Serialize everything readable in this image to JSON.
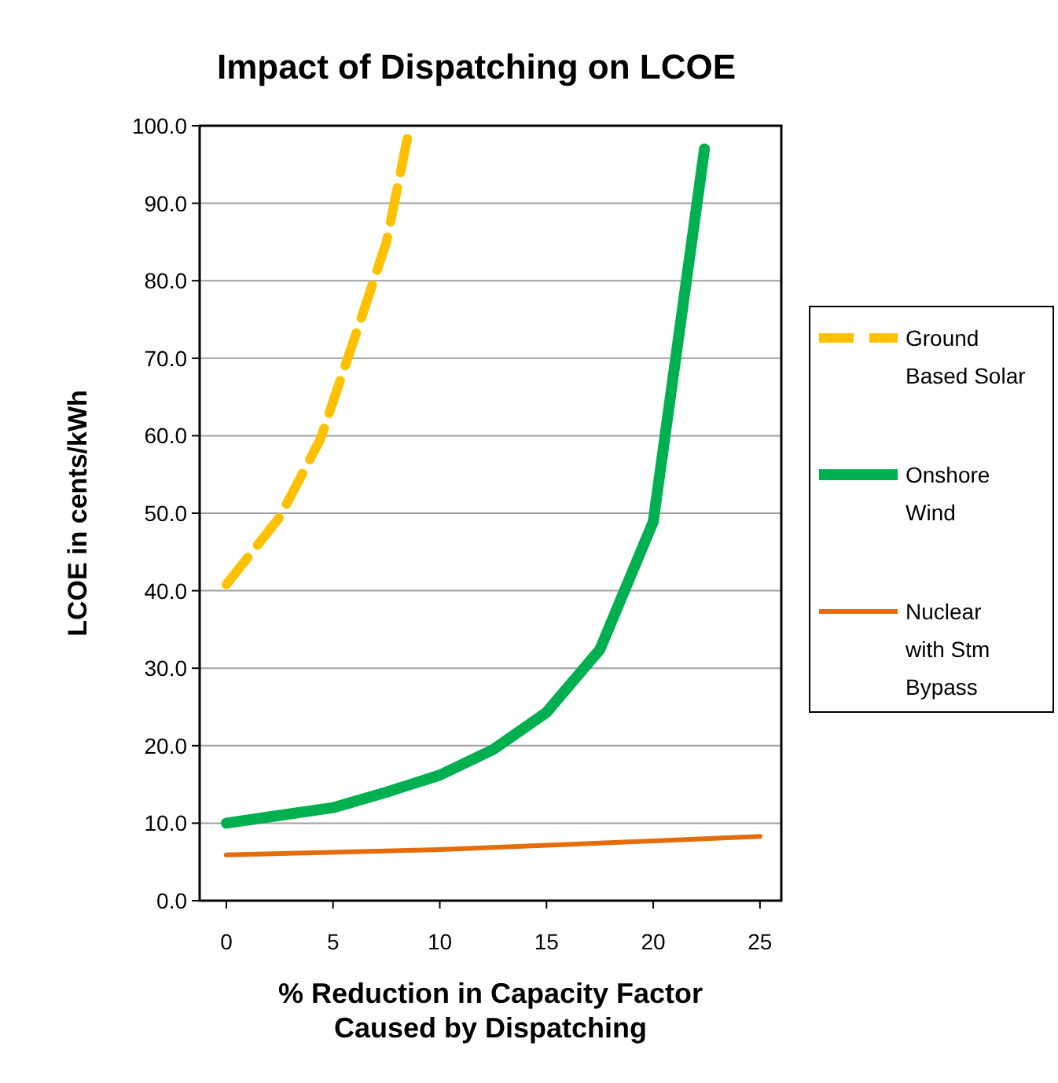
{
  "chart_data": {
    "type": "line",
    "title": "Impact of Dispatching on LCOE",
    "xlabel": "% Reduction in Capacity Factor Caused by Dispatching",
    "ylabel": "LCOE in cents/kWh",
    "xlim": [
      -1.25,
      26
    ],
    "xticks": [
      0,
      5,
      10,
      15,
      20,
      25
    ],
    "ylim": [
      0,
      100
    ],
    "yticks": [
      {
        "value": 0,
        "label": "0.0"
      },
      {
        "value": 10,
        "label": "10.0"
      },
      {
        "value": 20,
        "label": "20.0"
      },
      {
        "value": 30,
        "label": "30.0"
      },
      {
        "value": 40,
        "label": "40.0"
      },
      {
        "value": 50,
        "label": "50.0"
      },
      {
        "value": 60,
        "label": "60.0"
      },
      {
        "value": 70,
        "label": "70.0"
      },
      {
        "value": 80,
        "label": "80.0"
      },
      {
        "value": 90,
        "label": "90.0"
      },
      {
        "value": 100,
        "label": "100.0"
      }
    ],
    "grid": "y",
    "legend": "right",
    "marker": "none",
    "series": [
      {
        "name": "Ground Based Solar",
        "color": "#ffc000",
        "line_style": "dashed",
        "x": [
          0,
          2.5,
          4.4,
          6.3,
          7.5,
          8.6
        ],
        "values": [
          40.8,
          49.5,
          59.5,
          75,
          85,
          100
        ]
      },
      {
        "name": "Onshore Wind",
        "color": "#00b050",
        "line_style": "solid",
        "x": [
          0,
          2.5,
          5,
          7.5,
          10,
          12.5,
          15,
          17.5,
          20,
          22.4
        ],
        "values": [
          10,
          11,
          12,
          14,
          16.2,
          19.5,
          24.3,
          32.4,
          48.9,
          97
        ]
      },
      {
        "name": "Nuclear with Stm Bypass",
        "color": "#e46c0a",
        "line_style": "solid",
        "x": [
          0,
          10,
          20,
          25
        ],
        "values": [
          5.9,
          6.6,
          7.7,
          8.3
        ]
      }
    ]
  }
}
